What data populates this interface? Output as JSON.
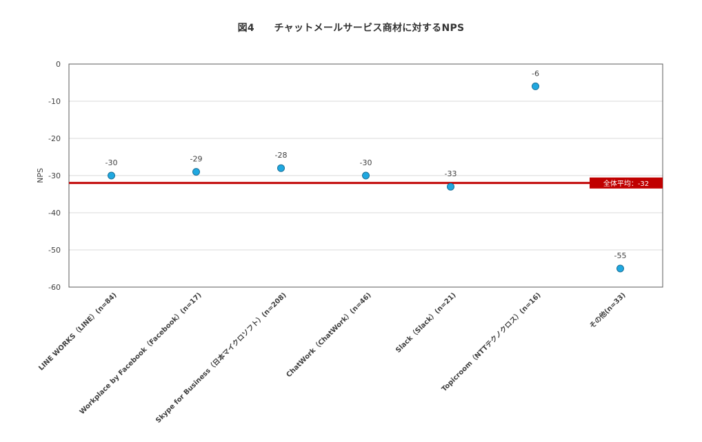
{
  "chart_data": {
    "type": "scatter",
    "title": "図4　　チャットメールサービス商材に対するNPS",
    "ylabel": "NPS",
    "xlabel": "",
    "ylim": [
      -60,
      0
    ],
    "yticks": [
      0,
      -10,
      -20,
      -30,
      -40,
      -50,
      -60
    ],
    "grid": true,
    "categories": [
      "LINE WORKS（LINE）(n=84)",
      "Workplace by Facebook（Facebook）(n=17)",
      "Skype for Business（日本マイクロソフト）(n=208)",
      "ChatWork（ChatWork）(n=46)",
      "Slack（Slack）(n=21)",
      "Topicroom（NTTテクノクロス）(n=16)",
      "その他(n=33)"
    ],
    "values": [
      -30,
      -29,
      -28,
      -30,
      -33,
      -6,
      -55
    ],
    "reference_line": {
      "value": -32,
      "label": "全体平均：-32",
      "color": "#c00000"
    },
    "marker_color": "#1fa8e0"
  }
}
